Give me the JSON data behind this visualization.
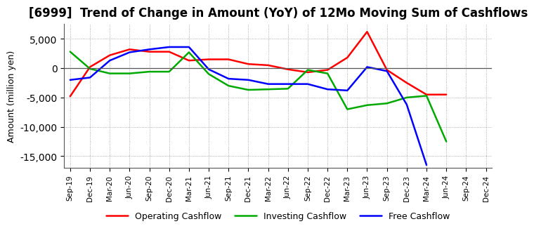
{
  "title": "[6999]  Trend of Change in Amount (YoY) of 12Mo Moving Sum of Cashflows",
  "ylabel": "Amount (million yen)",
  "x_labels": [
    "Sep-19",
    "Dec-19",
    "Mar-20",
    "Jun-20",
    "Sep-20",
    "Dec-20",
    "Mar-21",
    "Jun-21",
    "Sep-21",
    "Dec-21",
    "Mar-22",
    "Jun-22",
    "Sep-22",
    "Dec-22",
    "Mar-23",
    "Jun-23",
    "Sep-23",
    "Dec-23",
    "Mar-24",
    "Jun-24",
    "Sep-24",
    "Dec-24"
  ],
  "operating": [
    -4800,
    200,
    2200,
    3200,
    2800,
    2800,
    1300,
    1500,
    1500,
    700,
    500,
    -200,
    -700,
    -300,
    1800,
    6200,
    -300,
    -2500,
    -4500,
    -4500,
    null,
    null
  ],
  "investing": [
    2800,
    -100,
    -900,
    -900,
    -600,
    -600,
    2700,
    -1000,
    -3000,
    -3700,
    -3600,
    -3500,
    -300,
    -900,
    -7000,
    -6300,
    -6000,
    -5000,
    -4700,
    -12500,
    null,
    null
  ],
  "free": [
    -2000,
    -1600,
    1300,
    2700,
    3200,
    3600,
    3600,
    -200,
    -1800,
    -2000,
    -2700,
    -2700,
    -2700,
    -3600,
    -3800,
    200,
    -500,
    -6200,
    -16500,
    null,
    null,
    null
  ],
  "operating_color": "#ff0000",
  "investing_color": "#00aa00",
  "free_color": "#0000ff",
  "ylim": [
    -17000,
    7500
  ],
  "yticks": [
    -15000,
    -10000,
    -5000,
    0,
    5000
  ],
  "background_color": "#ffffff",
  "grid_color": "#999999",
  "title_fontsize": 12,
  "legend_labels": [
    "Operating Cashflow",
    "Investing Cashflow",
    "Free Cashflow"
  ]
}
